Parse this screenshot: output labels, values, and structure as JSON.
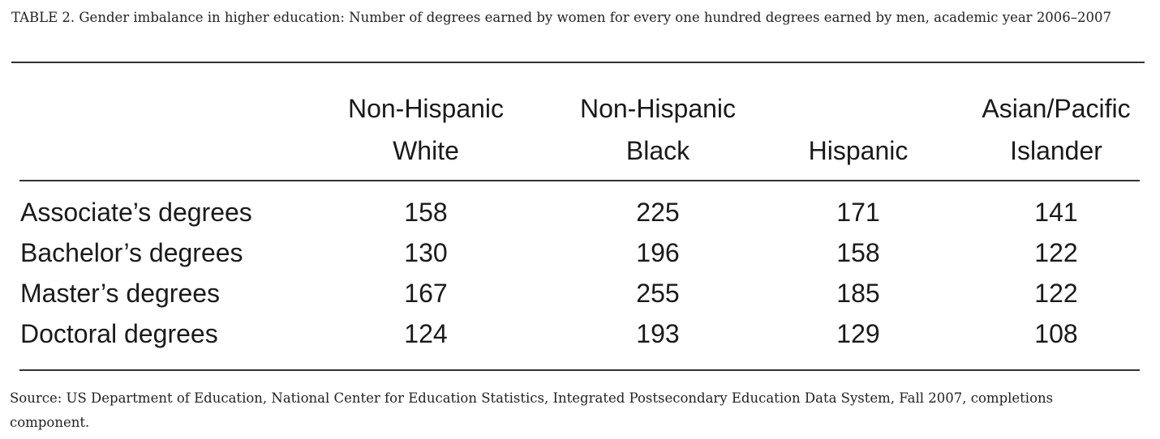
{
  "caption": "TABLE 2. Gender imbalance in higher education: Number of degrees earned by women for every one hundred degrees earned by men, academic year 2006–2007",
  "table": {
    "columns": [
      [
        "Non-Hispanic",
        "White"
      ],
      [
        "Non-Hispanic",
        "Black"
      ],
      [
        "Hispanic"
      ],
      [
        "Asian/Pacific",
        "Islander"
      ]
    ],
    "rows": [
      {
        "label": "Associate’s degrees",
        "values": [
          158,
          225,
          171,
          141
        ]
      },
      {
        "label": "Bachelor’s degrees",
        "values": [
          130,
          196,
          158,
          122
        ]
      },
      {
        "label": "Master’s degrees",
        "values": [
          167,
          255,
          185,
          122
        ]
      },
      {
        "label": "Doctoral degrees",
        "values": [
          124,
          193,
          129,
          108
        ]
      }
    ]
  },
  "source": "Source: US Department of Education, National Center for Education Statistics, Integrated Postsecondary Education Data System, Fall 2007, completions component."
}
